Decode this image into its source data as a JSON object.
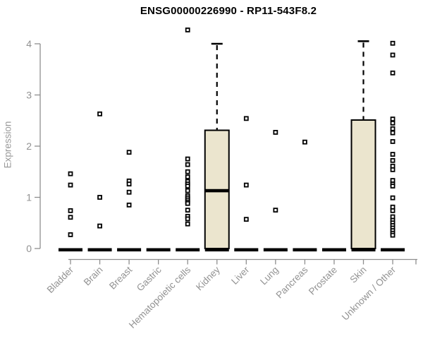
{
  "title": "ENSG00000226990 - RP11-543F8.2",
  "colors": {
    "background": "#ffffff",
    "title_text": "#000000",
    "axis_line": "#8e8e8e",
    "tick_text": "#929292",
    "axis_label_text": "#9a9a9a",
    "box_fill": "#ebe5ce",
    "box_stroke": "#000000",
    "whisker": "#000000",
    "point_fill": "#ffffff",
    "point_stroke": "#000000"
  },
  "chart_data": {
    "type": "boxplot",
    "title": "ENSG00000226990 - RP11-543F8.2",
    "xlabel": "",
    "ylabel": "Expression",
    "ylim": [
      0,
      4.3
    ],
    "yticks": [
      0,
      1,
      2,
      3,
      4
    ],
    "grid": false,
    "legend": null,
    "categories": [
      "Bladder",
      "Brain",
      "Breast",
      "Gastric",
      "Hematopoietic cells",
      "Kidney",
      "Liver",
      "Lung",
      "Pancreas",
      "Prostate",
      "Skin",
      "Unknown / Other"
    ],
    "series": [
      {
        "category": "Bladder",
        "q1": 0,
        "median": 0,
        "q3": 0,
        "whisker_low": 0,
        "whisker_high": 0,
        "outliers": [
          1.46,
          1.24,
          0.74,
          0.61,
          0.27
        ]
      },
      {
        "category": "Brain",
        "q1": 0,
        "median": 0,
        "q3": 0,
        "whisker_low": 0,
        "whisker_high": 0,
        "outliers": [
          2.63,
          1.0,
          0.44
        ]
      },
      {
        "category": "Breast",
        "q1": 0,
        "median": 0,
        "q3": 0,
        "whisker_low": 0,
        "whisker_high": 0,
        "outliers": [
          1.88,
          1.32,
          1.26,
          1.1,
          0.85
        ]
      },
      {
        "category": "Gastric",
        "q1": 0,
        "median": 0,
        "q3": 0,
        "whisker_low": 0,
        "whisker_high": 0,
        "outliers": []
      },
      {
        "category": "Hematopoietic cells",
        "q1": 0,
        "median": 0,
        "q3": 0,
        "whisker_low": 0,
        "whisker_high": 0,
        "outliers": [
          4.27,
          1.75,
          1.64,
          1.5,
          1.4,
          1.31,
          1.26,
          1.22,
          1.13,
          1.03,
          0.99,
          0.95,
          0.91,
          0.88,
          0.75,
          0.63,
          0.58,
          0.48
        ]
      },
      {
        "category": "Kidney",
        "q1": 0,
        "median": 1.13,
        "q3": 2.31,
        "whisker_low": 0,
        "whisker_high": 4.0,
        "outliers": []
      },
      {
        "category": "Liver",
        "q1": 0,
        "median": 0,
        "q3": 0,
        "whisker_low": 0,
        "whisker_high": 0,
        "outliers": [
          2.54,
          1.24,
          0.57
        ]
      },
      {
        "category": "Lung",
        "q1": 0,
        "median": 0,
        "q3": 0,
        "whisker_low": 0,
        "whisker_high": 0,
        "outliers": [
          2.27,
          0.75
        ]
      },
      {
        "category": "Pancreas",
        "q1": 0,
        "median": 0,
        "q3": 0,
        "whisker_low": 0,
        "whisker_high": 0,
        "outliers": [
          2.08
        ]
      },
      {
        "category": "Prostate",
        "q1": 0,
        "median": 0,
        "q3": 0,
        "whisker_low": 0,
        "whisker_high": 0,
        "outliers": []
      },
      {
        "category": "Skin",
        "q1": 0,
        "median": 0,
        "q3": 2.51,
        "whisker_low": 0,
        "whisker_high": 4.05,
        "outliers": []
      },
      {
        "category": "Unknown / Other",
        "q1": 0,
        "median": 0,
        "q3": 0,
        "whisker_low": 0,
        "whisker_high": 0,
        "outliers": [
          4.01,
          3.78,
          3.43,
          2.53,
          2.45,
          2.34,
          2.26,
          2.09,
          1.84,
          1.72,
          1.61,
          1.54,
          1.33,
          1.26,
          1.22,
          0.99,
          0.81,
          0.74,
          0.62,
          0.55,
          0.5,
          0.45,
          0.4,
          0.35,
          0.3,
          0.26
        ]
      }
    ]
  }
}
